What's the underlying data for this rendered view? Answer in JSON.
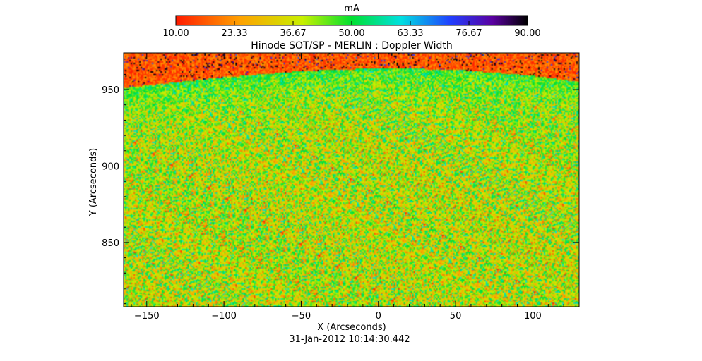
{
  "chart_data": {
    "type": "heatmap",
    "title": "Hinode SOT/SP - MERLIN : Doppler Width",
    "colorbar": {
      "unit_label": "mA",
      "range": [
        10.0,
        90.0
      ],
      "tick_labels": [
        "10.00",
        "23.33",
        "36.67",
        "50.00",
        "63.33",
        "76.67",
        "90.00"
      ],
      "tick_values": [
        10.0,
        23.33,
        36.67,
        50.0,
        63.33,
        76.67,
        90.0
      ],
      "colormap": "rainbow (red-yellow-green-cyan-blue-purple-black)"
    },
    "xlabel": "X (Arcseconds)",
    "ylabel": "Y (Arcseconds)",
    "xlim": [
      -165,
      130
    ],
    "ylim": [
      808,
      974
    ],
    "x_ticks": [
      -150,
      -100,
      -50,
      0,
      50,
      100
    ],
    "x_tick_labels": [
      "−150",
      "−100",
      "−50",
      "0",
      "50",
      "100"
    ],
    "y_ticks": [
      850,
      900,
      950
    ],
    "y_tick_labels": [
      "850",
      "900",
      "950"
    ],
    "limb": {
      "description": "solar limb arc; above it off-disk noise (mostly red/orange with black pixels)",
      "x": [
        -165,
        -100,
        -50,
        0,
        50,
        100,
        130
      ],
      "y": [
        951,
        958,
        962,
        964,
        963,
        959,
        955
      ]
    },
    "disk_values": {
      "typical_min": 20,
      "typical_max": 55,
      "near_limb_typical": 48
    },
    "timestamp": "31-Jan-2012 10:14:30.442"
  }
}
